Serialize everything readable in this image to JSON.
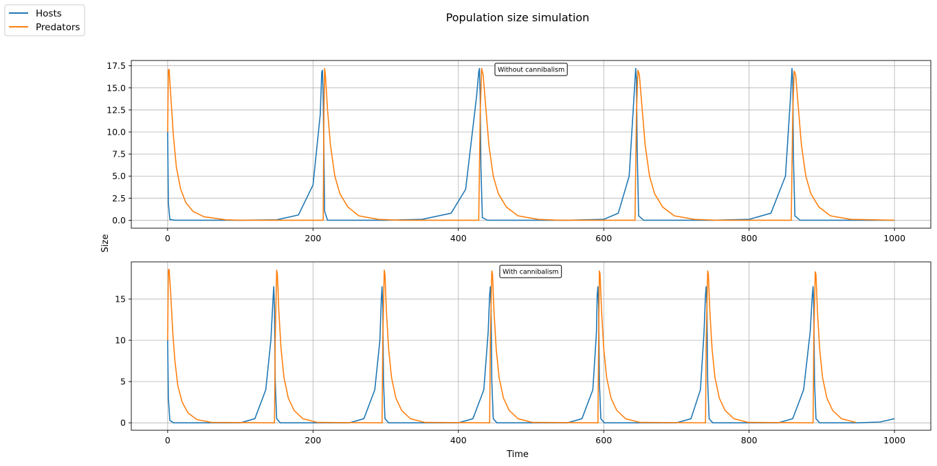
{
  "figure": {
    "title": "Population size simulation",
    "ylabel": "Size",
    "xlabel": "Time"
  },
  "legend": {
    "placement": "upper-left of figure",
    "entries": [
      {
        "label": "Hosts",
        "color": "#1f77b4"
      },
      {
        "label": "Predators",
        "color": "#ff7f0e"
      }
    ]
  },
  "chart_data": [
    {
      "type": "line",
      "annotation": "Without cannibalism",
      "xlim": [
        -50,
        1050
      ],
      "ylim": [
        -0.9,
        18.1
      ],
      "xticks": [
        0,
        200,
        400,
        600,
        800,
        1000
      ],
      "yticks": [
        0.0,
        2.5,
        5.0,
        7.5,
        10.0,
        12.5,
        15.0,
        17.5
      ],
      "ytick_labels": [
        "0.0",
        "2.5",
        "5.0",
        "7.5",
        "10.0",
        "12.5",
        "15.0",
        "17.5"
      ],
      "grid": true,
      "series": [
        {
          "name": "Hosts",
          "color": "#1f77b4",
          "x": [
            0,
            1,
            3,
            10,
            100,
            150,
            180,
            200,
            210,
            212,
            213,
            214,
            216,
            220,
            300,
            350,
            390,
            410,
            425,
            428,
            429,
            430,
            431,
            433,
            440,
            550,
            600,
            620,
            635,
            642,
            644,
            645,
            646,
            648,
            655,
            750,
            800,
            830,
            850,
            857,
            859,
            860,
            861,
            863,
            870,
            1000
          ],
          "y": [
            10.0,
            2.0,
            0.1,
            0.0,
            0.0,
            0.05,
            0.6,
            4.0,
            12.0,
            16.8,
            17.0,
            14.0,
            1.0,
            0.0,
            0.0,
            0.1,
            0.8,
            3.5,
            14.0,
            16.8,
            17.2,
            14.0,
            6.0,
            0.3,
            0.0,
            0.0,
            0.1,
            0.8,
            5.0,
            14.5,
            17.2,
            16.0,
            8.0,
            0.5,
            0.0,
            0.0,
            0.1,
            0.8,
            5.0,
            14.0,
            17.2,
            16.0,
            7.0,
            0.5,
            0.0,
            0.0
          ]
        },
        {
          "name": "Predators",
          "color": "#ff7f0e",
          "x": [
            0,
            1,
            2,
            4,
            8,
            12,
            18,
            25,
            35,
            50,
            80,
            100,
            214,
            215,
            216,
            217,
            220,
            224,
            230,
            237,
            248,
            263,
            290,
            320,
            428,
            430,
            432,
            434,
            438,
            442,
            448,
            455,
            466,
            482,
            510,
            540,
            643,
            645,
            647,
            649,
            653,
            657,
            663,
            670,
            681,
            697,
            725,
            755,
            858,
            860,
            862,
            864,
            868,
            872,
            878,
            885,
            896,
            912,
            940,
            1000
          ],
          "y": [
            10.0,
            17.0,
            17.1,
            14.5,
            9.5,
            6.0,
            3.5,
            2.0,
            1.0,
            0.4,
            0.05,
            0.0,
            0.0,
            12.0,
            17.2,
            16.5,
            12.5,
            8.5,
            5.0,
            3.0,
            1.5,
            0.5,
            0.1,
            0.0,
            0.0,
            12.0,
            17.2,
            16.5,
            12.5,
            8.5,
            5.0,
            3.0,
            1.5,
            0.5,
            0.1,
            0.0,
            0.0,
            12.0,
            17.0,
            16.5,
            12.5,
            8.5,
            5.0,
            3.0,
            1.5,
            0.5,
            0.1,
            0.0,
            0.0,
            12.0,
            16.9,
            16.5,
            12.5,
            8.5,
            5.0,
            3.0,
            1.5,
            0.5,
            0.1,
            0.0
          ]
        }
      ]
    },
    {
      "type": "line",
      "annotation": "With cannibalism",
      "xlim": [
        -50,
        1050
      ],
      "ylim": [
        -0.9,
        19.5
      ],
      "xticks": [
        0,
        200,
        400,
        600,
        800,
        1000
      ],
      "yticks": [
        0,
        5,
        10,
        15
      ],
      "ytick_labels": [
        "0",
        "5",
        "10",
        "15"
      ],
      "grid": true,
      "series": [
        {
          "name": "Hosts",
          "color": "#1f77b4",
          "x": [
            0,
            1,
            3,
            8,
            100,
            120,
            135,
            142,
            145,
            146,
            147,
            148,
            150,
            155,
            250,
            270,
            285,
            292,
            294,
            295,
            296,
            297,
            299,
            304,
            400,
            420,
            435,
            441,
            443,
            444,
            445,
            446,
            448,
            453,
            550,
            570,
            585,
            590,
            591,
            592,
            593,
            594,
            596,
            601,
            700,
            720,
            733,
            738,
            740,
            741,
            742,
            743,
            745,
            750,
            840,
            860,
            875,
            884,
            887,
            888,
            889,
            890,
            892,
            897,
            950,
            980,
            1000
          ],
          "y": [
            10.0,
            3.0,
            0.3,
            0.0,
            0.0,
            0.5,
            4.0,
            10.0,
            15.0,
            16.5,
            14.0,
            5.0,
            0.5,
            0.0,
            0.0,
            0.5,
            4.0,
            10.0,
            15.0,
            16.5,
            14.0,
            5.0,
            0.5,
            0.0,
            0.0,
            0.5,
            4.0,
            11.0,
            15.5,
            16.5,
            14.0,
            5.0,
            0.5,
            0.0,
            0.0,
            0.5,
            4.0,
            11.0,
            15.5,
            16.5,
            14.0,
            5.0,
            0.5,
            0.0,
            0.0,
            0.5,
            4.0,
            11.0,
            15.5,
            16.5,
            14.0,
            5.0,
            0.5,
            0.0,
            0.0,
            0.5,
            4.0,
            11.0,
            15.5,
            16.5,
            14.0,
            5.0,
            0.5,
            0.0,
            0.0,
            0.1,
            0.5
          ]
        },
        {
          "name": "Predators",
          "color": "#ff7f0e",
          "x": [
            0,
            1,
            2,
            4,
            7,
            10,
            14,
            20,
            28,
            40,
            60,
            147,
            148,
            150,
            151,
            153,
            156,
            160,
            166,
            174,
            186,
            206,
            295,
            296,
            298,
            299,
            301,
            304,
            308,
            314,
            322,
            334,
            354,
            443,
            444,
            446,
            447,
            449,
            452,
            456,
            462,
            470,
            482,
            502,
            592,
            593,
            594,
            595,
            597,
            600,
            604,
            610,
            618,
            630,
            650,
            740,
            741,
            743,
            744,
            746,
            749,
            753,
            759,
            767,
            779,
            799,
            888,
            889,
            891,
            892,
            894,
            897,
            901,
            907,
            915,
            927,
            947
          ],
          "y": [
            10.0,
            18.5,
            18.6,
            16.0,
            11.0,
            7.5,
            4.5,
            2.5,
            1.2,
            0.4,
            0.05,
            0.0,
            10.0,
            18.5,
            18.0,
            13.5,
            9.0,
            5.5,
            3.0,
            1.5,
            0.5,
            0.05,
            0.0,
            10.0,
            18.5,
            18.0,
            13.5,
            9.0,
            5.5,
            3.0,
            1.5,
            0.5,
            0.05,
            0.0,
            10.0,
            18.4,
            18.0,
            13.5,
            9.0,
            5.5,
            3.0,
            1.5,
            0.5,
            0.05,
            0.0,
            10.0,
            18.4,
            18.0,
            13.5,
            9.0,
            5.5,
            3.0,
            1.5,
            0.5,
            0.05,
            0.0,
            10.0,
            18.4,
            18.0,
            13.5,
            9.0,
            5.5,
            3.0,
            1.5,
            0.5,
            0.05,
            0.0,
            10.0,
            18.3,
            18.0,
            13.5,
            9.0,
            5.5,
            3.0,
            1.5,
            0.5,
            0.05
          ]
        }
      ]
    }
  ]
}
